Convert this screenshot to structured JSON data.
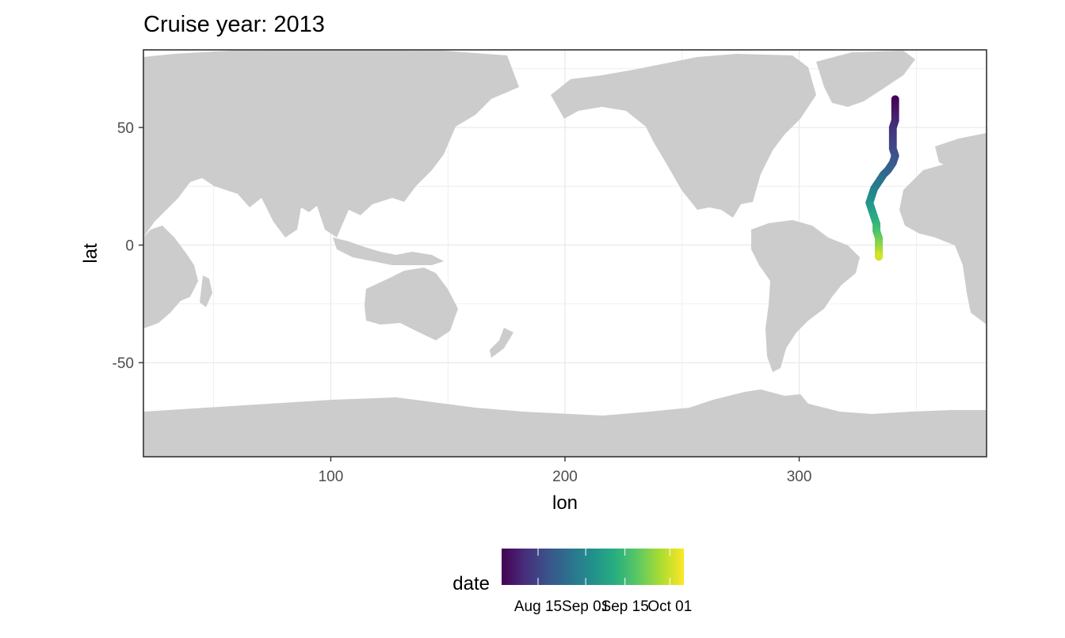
{
  "chart_data": {
    "type": "scatter",
    "title": "Cruise year: 2013",
    "xlabel": "lon",
    "ylabel": "lat",
    "xlim": [
      20,
      380
    ],
    "ylim": [
      -90,
      83
    ],
    "x_ticks": [
      100,
      200,
      300
    ],
    "y_ticks": [
      -50,
      0,
      50
    ],
    "grid": true,
    "background": "basemap of land in grey (#cccccc), longitudes 20-380 (Pacific-centred)",
    "land_color": "#cccccc",
    "color_scale": "viridis",
    "legend": {
      "title": "date",
      "placement": "bottom",
      "labels": [
        "Aug 15",
        "Sep 01",
        "Sep 15",
        "Oct 01"
      ],
      "date_range": [
        "2013-08-02",
        "2013-10-06"
      ]
    },
    "points": [
      {
        "date": "2013-08-02",
        "lon": 341,
        "lat": 62
      },
      {
        "date": "2013-08-04",
        "lon": 341,
        "lat": 59
      },
      {
        "date": "2013-08-06",
        "lon": 341,
        "lat": 56
      },
      {
        "date": "2013-08-08",
        "lon": 341,
        "lat": 53
      },
      {
        "date": "2013-08-10",
        "lon": 340,
        "lat": 50
      },
      {
        "date": "2013-08-12",
        "lon": 340,
        "lat": 47
      },
      {
        "date": "2013-08-14",
        "lon": 340,
        "lat": 44
      },
      {
        "date": "2013-08-16",
        "lon": 340,
        "lat": 41
      },
      {
        "date": "2013-08-18",
        "lon": 341,
        "lat": 38
      },
      {
        "date": "2013-08-20",
        "lon": 340,
        "lat": 35
      },
      {
        "date": "2013-08-22",
        "lon": 338,
        "lat": 32
      },
      {
        "date": "2013-08-24",
        "lon": 336,
        "lat": 30
      },
      {
        "date": "2013-08-27",
        "lon": 334,
        "lat": 27
      },
      {
        "date": "2013-08-29",
        "lon": 332,
        "lat": 24
      },
      {
        "date": "2013-09-01",
        "lon": 331,
        "lat": 21
      },
      {
        "date": "2013-09-04",
        "lon": 330,
        "lat": 18
      },
      {
        "date": "2013-09-07",
        "lon": 331,
        "lat": 15
      },
      {
        "date": "2013-09-10",
        "lon": 332,
        "lat": 12
      },
      {
        "date": "2013-09-13",
        "lon": 333,
        "lat": 9
      },
      {
        "date": "2013-09-16",
        "lon": 333,
        "lat": 6
      },
      {
        "date": "2013-09-20",
        "lon": 334,
        "lat": 3
      },
      {
        "date": "2013-09-24",
        "lon": 334,
        "lat": 0
      },
      {
        "date": "2013-09-28",
        "lon": 334,
        "lat": -3
      },
      {
        "date": "2013-10-02",
        "lon": 334,
        "lat": -5
      }
    ]
  }
}
